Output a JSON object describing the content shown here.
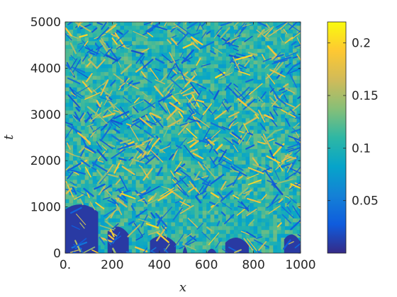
{
  "chart_data": {
    "type": "heatmap",
    "title": "",
    "xlabel": "x",
    "ylabel": "t",
    "xlim": [
      0,
      1000
    ],
    "ylim": [
      0,
      5000
    ],
    "x_ticks": [
      0,
      200,
      400,
      600,
      800,
      1000
    ],
    "x_tick_labels": [
      "0.",
      "200",
      "400",
      "600",
      "800",
      "1000"
    ],
    "y_ticks": [
      0,
      1000,
      2000,
      3000,
      4000,
      5000
    ],
    "y_tick_labels": [
      "0",
      "1000",
      "2000",
      "3000",
      "4000",
      "5000"
    ],
    "colorbar": {
      "colormap": "parula",
      "range": [
        0,
        0.22
      ],
      "ticks": [
        0.05,
        0.1,
        0.15,
        0.2
      ],
      "tick_labels": [
        "0.05",
        "0.1",
        "0.15",
        "0.2"
      ],
      "colors": [
        "#352a87",
        "#0f5cdd",
        "#1481d6",
        "#06a4ca",
        "#2eb7a4",
        "#87bf77",
        "#d1bb59",
        "#fec832",
        "#f9fb0e"
      ]
    },
    "description_of_field": "",
    "grid": false
  }
}
